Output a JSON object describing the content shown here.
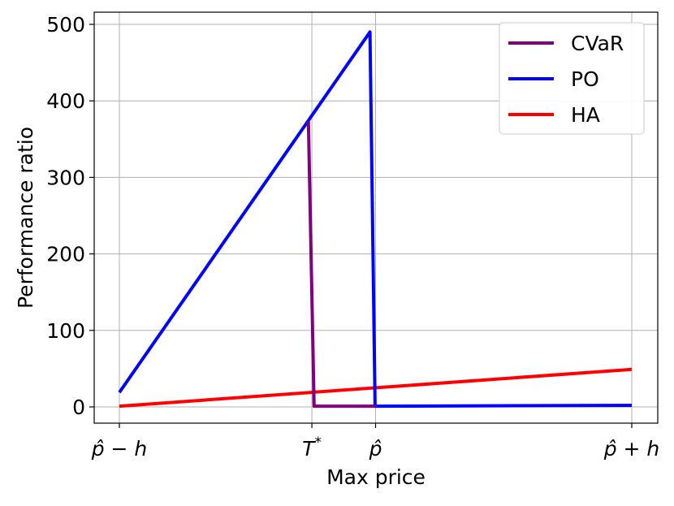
{
  "chart_data": {
    "type": "line",
    "xlabel": "Max price",
    "ylabel": "Performance ratio",
    "xlim": [
      0,
      1
    ],
    "ylim": [
      -22,
      515
    ],
    "x_ticks": [
      {
        "value": 0,
        "label": "p̂ − h"
      },
      {
        "value": 0.3757,
        "label": "T*"
      },
      {
        "value": 0.5,
        "label": "p̂"
      },
      {
        "value": 1,
        "label": "p̂ + h"
      }
    ],
    "y_ticks": [
      0,
      100,
      200,
      300,
      400,
      500
    ],
    "grid": true,
    "legend_position": "top-right",
    "series": [
      {
        "name": "CVaR",
        "color": "#800080",
        "points": [
          [
            0.369,
            373
          ],
          [
            0.38,
            1
          ],
          [
            0.5,
            1
          ]
        ]
      },
      {
        "name": "PO",
        "color": "#0000ff",
        "points": [
          [
            0,
            19
          ],
          [
            0.489,
            490
          ],
          [
            0.499,
            1
          ],
          [
            1,
            2
          ]
        ]
      },
      {
        "name": "HA",
        "color": "#ff0000",
        "points": [
          [
            0,
            1
          ],
          [
            1,
            49
          ]
        ]
      }
    ]
  }
}
